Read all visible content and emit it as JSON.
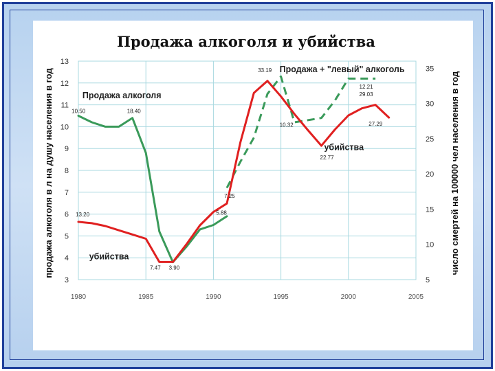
{
  "chart_data": {
    "type": "line",
    "title": "Продажа алкоголя и убийства",
    "ylabel_left": "продажа алкоголя в л на душу населения в год",
    "ylabel_right": "число смертей на 100000 чел населения в год",
    "x_ticks": [
      "1980",
      "1985",
      "1990",
      "1995",
      "2000",
      "2005"
    ],
    "xlim": [
      1980,
      2005
    ],
    "y_left_ticks": [
      "3",
      "4",
      "5",
      "6",
      "7",
      "8",
      "9",
      "10",
      "11",
      "12",
      "13"
    ],
    "ylim_left": [
      3,
      13
    ],
    "y_right_ticks": [
      "5",
      "10",
      "15",
      "20",
      "25",
      "30",
      "35"
    ],
    "ylim_right": [
      5,
      36
    ],
    "grid": true,
    "colors": {
      "alcohol": "#3a9a5a",
      "murders": "#e02020",
      "grid": "#a8d8e0",
      "accent": "#1f3f9a"
    },
    "series": [
      {
        "name": "Продажа алкоголя",
        "axis": "left",
        "style": "solid",
        "color": "#3a9a5a",
        "x": [
          1980,
          1981,
          1982,
          1983,
          1984,
          1985,
          1986,
          1987,
          1988,
          1989,
          1990,
          1991
        ],
        "y": [
          10.5,
          10.2,
          10.0,
          10.0,
          10.4,
          8.8,
          5.2,
          3.8,
          4.5,
          5.3,
          5.5,
          5.9
        ]
      },
      {
        "name": "Продажа + \"левый\" алкоголь",
        "axis": "left",
        "style": "dashed",
        "color": "#3a9a5a",
        "x": [
          1991,
          1992,
          1993,
          1994,
          1995,
          1996,
          1997,
          1998,
          1999,
          2000,
          2001,
          2002
        ],
        "y": [
          7.2,
          8.4,
          9.5,
          11.5,
          12.3,
          10.2,
          10.3,
          10.4,
          11.2,
          12.2,
          12.2,
          12.2
        ]
      },
      {
        "name": "убийства",
        "axis": "right",
        "style": "solid",
        "color": "#e02020",
        "x": [
          1980,
          1981,
          1982,
          1983,
          1984,
          1985,
          1986,
          1987,
          1988,
          1989,
          1990,
          1991,
          1992,
          1993,
          1994,
          1995,
          1996,
          1997,
          1998,
          1999,
          2000,
          2001,
          2002,
          2003
        ],
        "y": [
          13.2,
          13.0,
          12.6,
          12.0,
          11.4,
          10.8,
          7.5,
          7.5,
          10.0,
          12.7,
          14.6,
          15.8,
          24.5,
          31.5,
          33.2,
          31.0,
          28.5,
          26.2,
          24.0,
          26.3,
          28.3,
          29.3,
          29.8,
          28.0
        ]
      }
    ],
    "labels": [
      {
        "text": "Продажа алкоголя",
        "x": 1980.3,
        "y": 11.3,
        "axis": "left",
        "size": "big"
      },
      {
        "text": "Продажа + \"левый\" алкоголь",
        "x": 1994.9,
        "y": 12.5,
        "axis": "left",
        "size": "big"
      },
      {
        "text": "убийства",
        "x": 1998.2,
        "y": 23.4,
        "axis": "right",
        "size": "big"
      },
      {
        "text": "убийства",
        "x": 1980.8,
        "y": 7.9,
        "axis": "right",
        "size": "big"
      },
      {
        "text": "10.50",
        "x": 1979.5,
        "y": 10.62,
        "axis": "left",
        "size": "small"
      },
      {
        "text": "18.40",
        "x": 1983.6,
        "y": 10.62,
        "axis": "left",
        "size": "small"
      },
      {
        "text": "13.20",
        "x": 1979.8,
        "y": 5.9,
        "axis": "left",
        "size": "small"
      },
      {
        "text": "7.47",
        "x": 1985.3,
        "y": 3.46,
        "axis": "left",
        "size": "small"
      },
      {
        "text": "3.90",
        "x": 1986.7,
        "y": 3.46,
        "axis": "left",
        "size": "small"
      },
      {
        "text": "5.88",
        "x": 1990.2,
        "y": 5.97,
        "axis": "left",
        "size": "small"
      },
      {
        "text": "7.25",
        "x": 1990.8,
        "y": 6.75,
        "axis": "left",
        "size": "small"
      },
      {
        "text": "33.19",
        "x": 1993.3,
        "y": 12.5,
        "axis": "left",
        "size": "small"
      },
      {
        "text": "10.32",
        "x": 1994.9,
        "y": 10.0,
        "axis": "left",
        "size": "small"
      },
      {
        "text": "22.77",
        "x": 1997.9,
        "y": 8.5,
        "axis": "left",
        "size": "small"
      },
      {
        "text": "12.21",
        "x": 2000.8,
        "y": 11.75,
        "axis": "left",
        "size": "small"
      },
      {
        "text": "29.03",
        "x": 2000.8,
        "y": 11.4,
        "axis": "left",
        "size": "small"
      },
      {
        "text": "27.29",
        "x": 2001.5,
        "y": 10.05,
        "axis": "left",
        "size": "small"
      }
    ]
  }
}
